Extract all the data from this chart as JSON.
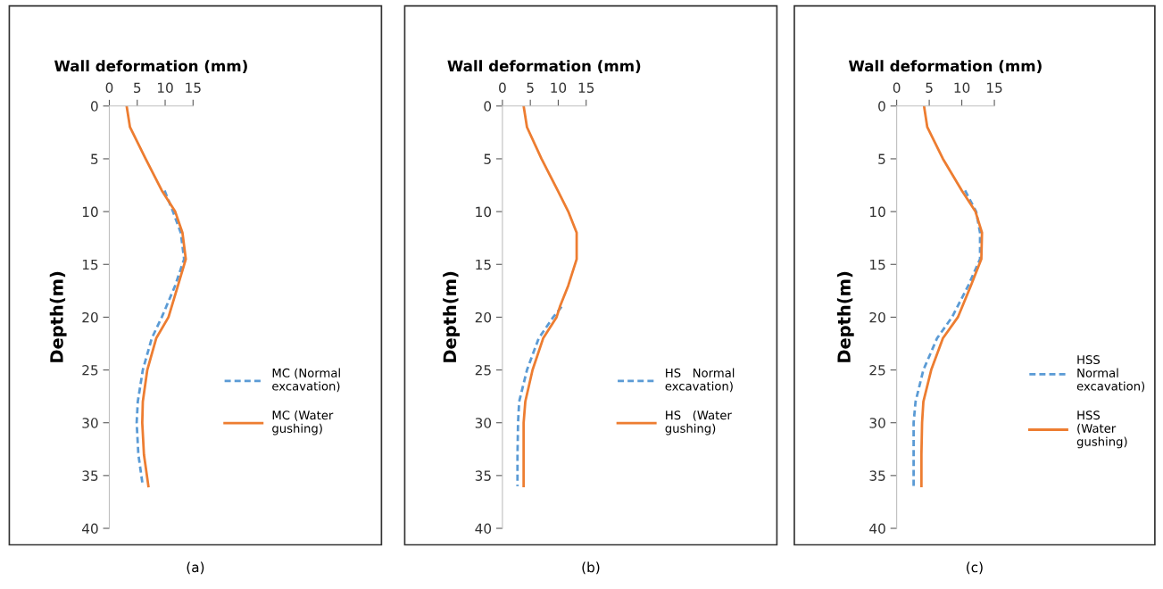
{
  "chart_data": [
    {
      "type": "line",
      "title": "Wall deformation (mm)",
      "ylabel": "Depth(m)",
      "xlim": [
        0,
        15
      ],
      "xticks": [
        0,
        5,
        10,
        15
      ],
      "ylim": [
        40,
        0
      ],
      "yticks": [
        0,
        5,
        10,
        15,
        20,
        25,
        30,
        35,
        40
      ],
      "legend": "right",
      "grid": false,
      "marker": "none",
      "annotations": [
        "(a)"
      ],
      "series": [
        {
          "name": "MC (Normal\nexcavation)",
          "color": "#5b9bd5",
          "line_style": "dashed",
          "x": [
            9.9,
            11.4,
            12.8,
            13.4,
            11.8,
            9.4,
            7.6,
            6.0,
            5.1,
            4.9,
            5.2,
            6.0
          ],
          "values": [
            8,
            10,
            12,
            14.5,
            17,
            20,
            22,
            25,
            28,
            30,
            33,
            36
          ]
        },
        {
          "name": "MC (Water\ngushing)",
          "color": "#ed7d31",
          "line_style": "solid",
          "x": [
            3.1,
            3.7,
            6.5,
            9.4,
            11.8,
            13.1,
            13.7,
            12.3,
            10.6,
            8.4,
            6.8,
            6.0,
            5.9,
            6.2,
            7.0
          ],
          "values": [
            0,
            2,
            5,
            8,
            10,
            12,
            14.5,
            17,
            20,
            22,
            25,
            28,
            30,
            33,
            36
          ]
        }
      ]
    },
    {
      "type": "line",
      "title": "Wall deformation (mm)",
      "ylabel": "Depth(m)",
      "xlim": [
        0,
        15
      ],
      "xticks": [
        0,
        5,
        10,
        15
      ],
      "ylim": [
        40,
        0
      ],
      "yticks": [
        0,
        5,
        10,
        15,
        20,
        25,
        30,
        35,
        40
      ],
      "legend": "right",
      "grid": false,
      "marker": "none",
      "annotations": [
        "(b)"
      ],
      "series": [
        {
          "name": "HS   Normal\nexcavation)",
          "color": "#5b9bd5",
          "line_style": "dashed",
          "x": [
            10.6,
            9.1,
            6.5,
            4.4,
            3.0,
            2.8,
            2.7,
            2.7
          ],
          "values": [
            19,
            20,
            22,
            25,
            28,
            30,
            33,
            36
          ]
        },
        {
          "name": "HS   (Water\ngushing)",
          "color": "#ed7d31",
          "line_style": "solid",
          "x": [
            3.8,
            4.4,
            7.0,
            9.9,
            11.8,
            13.3,
            13.3,
            11.8,
            10.3,
            9.7,
            7.3,
            5.4,
            4.1,
            3.8,
            3.8,
            3.8
          ],
          "values": [
            0,
            2,
            5,
            8,
            10,
            12,
            14.5,
            17,
            19,
            20,
            22,
            25,
            28,
            30,
            33,
            36
          ]
        }
      ]
    },
    {
      "type": "line",
      "title": "Wall deformation (mm)",
      "ylabel": "Depth(m)",
      "xlim": [
        0,
        15
      ],
      "xticks": [
        0,
        5,
        10,
        15
      ],
      "ylim": [
        40,
        0
      ],
      "yticks": [
        0,
        5,
        10,
        15,
        20,
        25,
        30,
        35,
        40
      ],
      "legend": "right",
      "grid": false,
      "marker": "none",
      "annotations": [
        "(c)"
      ],
      "series": [
        {
          "name": "HSS\nNormal\nexcavation)",
          "color": "#5b9bd5",
          "line_style": "dashed",
          "x": [
            10.5,
            12.2,
            12.8,
            12.8,
            11.0,
            8.5,
            6.2,
            4.1,
            2.9,
            2.6,
            2.6,
            2.6
          ],
          "values": [
            8,
            10,
            12,
            14.5,
            17,
            20,
            22,
            25,
            28,
            30,
            33,
            36
          ]
        },
        {
          "name": "HSS\n(Water\ngushing)",
          "color": "#ed7d31",
          "line_style": "solid",
          "x": [
            4.2,
            4.7,
            7.1,
            10.0,
            12.1,
            13.1,
            13.0,
            11.4,
            9.4,
            7.1,
            5.3,
            4.1,
            3.9,
            3.8,
            3.8
          ],
          "values": [
            0,
            2,
            5,
            8,
            10,
            12,
            14.5,
            17,
            20,
            22,
            25,
            28,
            30,
            33,
            36
          ]
        }
      ]
    }
  ]
}
